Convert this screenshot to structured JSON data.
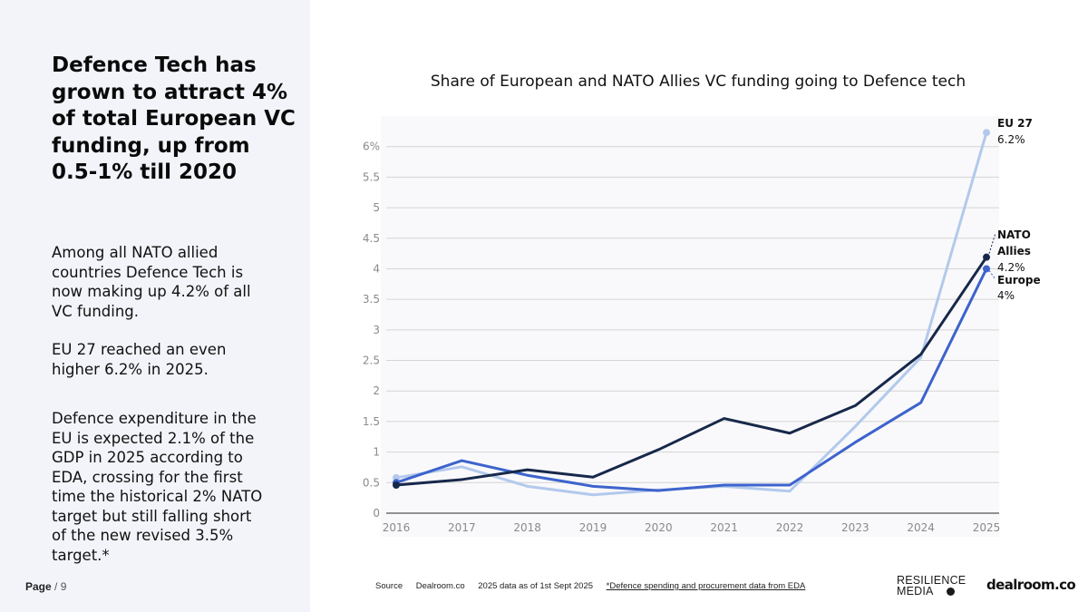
{
  "left": {
    "headline": "Defence Tech has grown to attract 4% of total European VC funding, up from 0.5-1% till 2020",
    "paragraph_1": "Among all NATO allied countries Defence Tech is now making up 4.2% of all VC funding.",
    "paragraph_2": "EU 27 reached an even higher 6.2% in 2025.",
    "paragraph_3": "Defence expenditure in the EU is expected 2.1% of the GDP in 2025 according to EDA, crossing for the first time the historical 2% NATO target but still falling short of the new revised 3.5% target.*"
  },
  "page": {
    "label": "Page",
    "separator": "/",
    "number": "9"
  },
  "footer": {
    "source_label": "Source",
    "source": "Dealroom.co",
    "note": "2025 data as of 1st Sept 2025",
    "footnote": "*Defence spending and procurement data from EDA"
  },
  "logos": {
    "resilience_line1": "RESILIENCE",
    "resilience_line2": "MEDIA",
    "dealroom": "dealroom.co"
  },
  "colors": {
    "eu27": "#b3c9ec",
    "nato": "#17284a",
    "europe": "#3d63cc",
    "grid": "#d4d4d4",
    "tick": "#8a8a8a",
    "panel": "#f2f4f9"
  },
  "chart_data": {
    "type": "line",
    "title": "Share of European and NATO Allies VC funding going to Defence tech",
    "xlabel": "",
    "ylabel": "",
    "x": [
      "2016",
      "2017",
      "2018",
      "2019",
      "2020",
      "2021",
      "2022",
      "2023",
      "2024",
      "2025"
    ],
    "ylim": [
      0,
      6.5
    ],
    "yticks": [
      0,
      0.5,
      1,
      1.5,
      2,
      2.5,
      3,
      3.5,
      4,
      4.5,
      5,
      5.5,
      6
    ],
    "ytick_labels": [
      "0",
      "0.5",
      "1",
      "1.5",
      "2",
      "2.5",
      "3",
      "3.5",
      "4",
      "4.5",
      "5",
      "5.5",
      "6%"
    ],
    "grid": true,
    "legend": "end-labels",
    "series": [
      {
        "key": "eu27",
        "name": "EU 27",
        "end_label": "6.2%",
        "values": [
          0.58,
          0.76,
          0.44,
          0.3,
          0.38,
          0.44,
          0.36,
          1.42,
          2.55,
          6.23
        ]
      },
      {
        "key": "nato",
        "name": "NATO Allies",
        "end_label": "4.2%",
        "values": [
          0.46,
          0.55,
          0.71,
          0.59,
          1.04,
          1.55,
          1.31,
          1.76,
          2.6,
          4.19
        ]
      },
      {
        "key": "europe",
        "name": "Europe",
        "end_label": "4%",
        "values": [
          0.5,
          0.86,
          0.62,
          0.44,
          0.37,
          0.46,
          0.46,
          1.16,
          1.81,
          4.0
        ]
      }
    ]
  }
}
